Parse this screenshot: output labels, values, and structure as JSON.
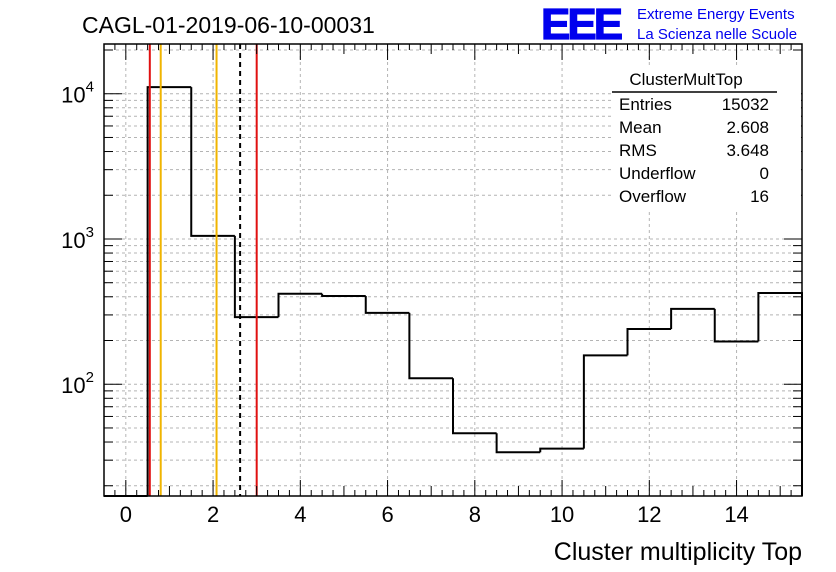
{
  "header": {
    "run_title": "CAGL-01-2019-06-10-00031",
    "logo_text": "EEE",
    "logo_line1": "Extreme Energy Events",
    "logo_line2": "La Scienza nelle Scuole"
  },
  "stats": {
    "name": "ClusterMultTop",
    "rows": [
      {
        "label": "Entries",
        "value": "15032"
      },
      {
        "label": "Mean",
        "value": "2.608"
      },
      {
        "label": "RMS",
        "value": "3.648"
      },
      {
        "label": "Underflow",
        "value": "0"
      },
      {
        "label": "Overflow",
        "value": "16"
      }
    ]
  },
  "chart_data": {
    "type": "bar",
    "histogram": true,
    "xlabel": "Cluster multiplicity Top",
    "ylabel": "",
    "xlim": [
      -0.5,
      15.5
    ],
    "ylim": [
      17,
      22000
    ],
    "y_scale": "log",
    "grid": true,
    "x_ticks": [
      0,
      2,
      4,
      6,
      8,
      10,
      12,
      14
    ],
    "y_ticks": [
      {
        "value": 100,
        "base": "10",
        "exp": "2"
      },
      {
        "value": 1000,
        "base": "10",
        "exp": "3"
      },
      {
        "value": 10000,
        "base": "10",
        "exp": "4"
      }
    ],
    "bins": [
      {
        "x": 0,
        "value": 0
      },
      {
        "x": 1,
        "value": 11100
      },
      {
        "x": 2,
        "value": 1050
      },
      {
        "x": 3,
        "value": 290
      },
      {
        "x": 4,
        "value": 420
      },
      {
        "x": 5,
        "value": 405
      },
      {
        "x": 6,
        "value": 310
      },
      {
        "x": 7,
        "value": 110
      },
      {
        "x": 8,
        "value": 46
      },
      {
        "x": 9,
        "value": 34
      },
      {
        "x": 10,
        "value": 36
      },
      {
        "x": 11,
        "value": 158
      },
      {
        "x": 12,
        "value": 240
      },
      {
        "x": 13,
        "value": 330
      },
      {
        "x": 14,
        "value": 197
      },
      {
        "x": 15,
        "value": 425
      }
    ],
    "vertical_lines": [
      {
        "x": 0.55,
        "color": "#e01010",
        "style": "solid"
      },
      {
        "x": 0.8,
        "color": "#f0b400",
        "style": "solid"
      },
      {
        "x": 2.08,
        "color": "#f0b400",
        "style": "solid"
      },
      {
        "x": 2.62,
        "color": "#000000",
        "style": "dashed"
      },
      {
        "x": 3.0,
        "color": "#e01010",
        "style": "solid"
      }
    ],
    "colors": {
      "line": "#000000",
      "grid": "#b4b4b4",
      "logo": "#0000ee"
    }
  }
}
